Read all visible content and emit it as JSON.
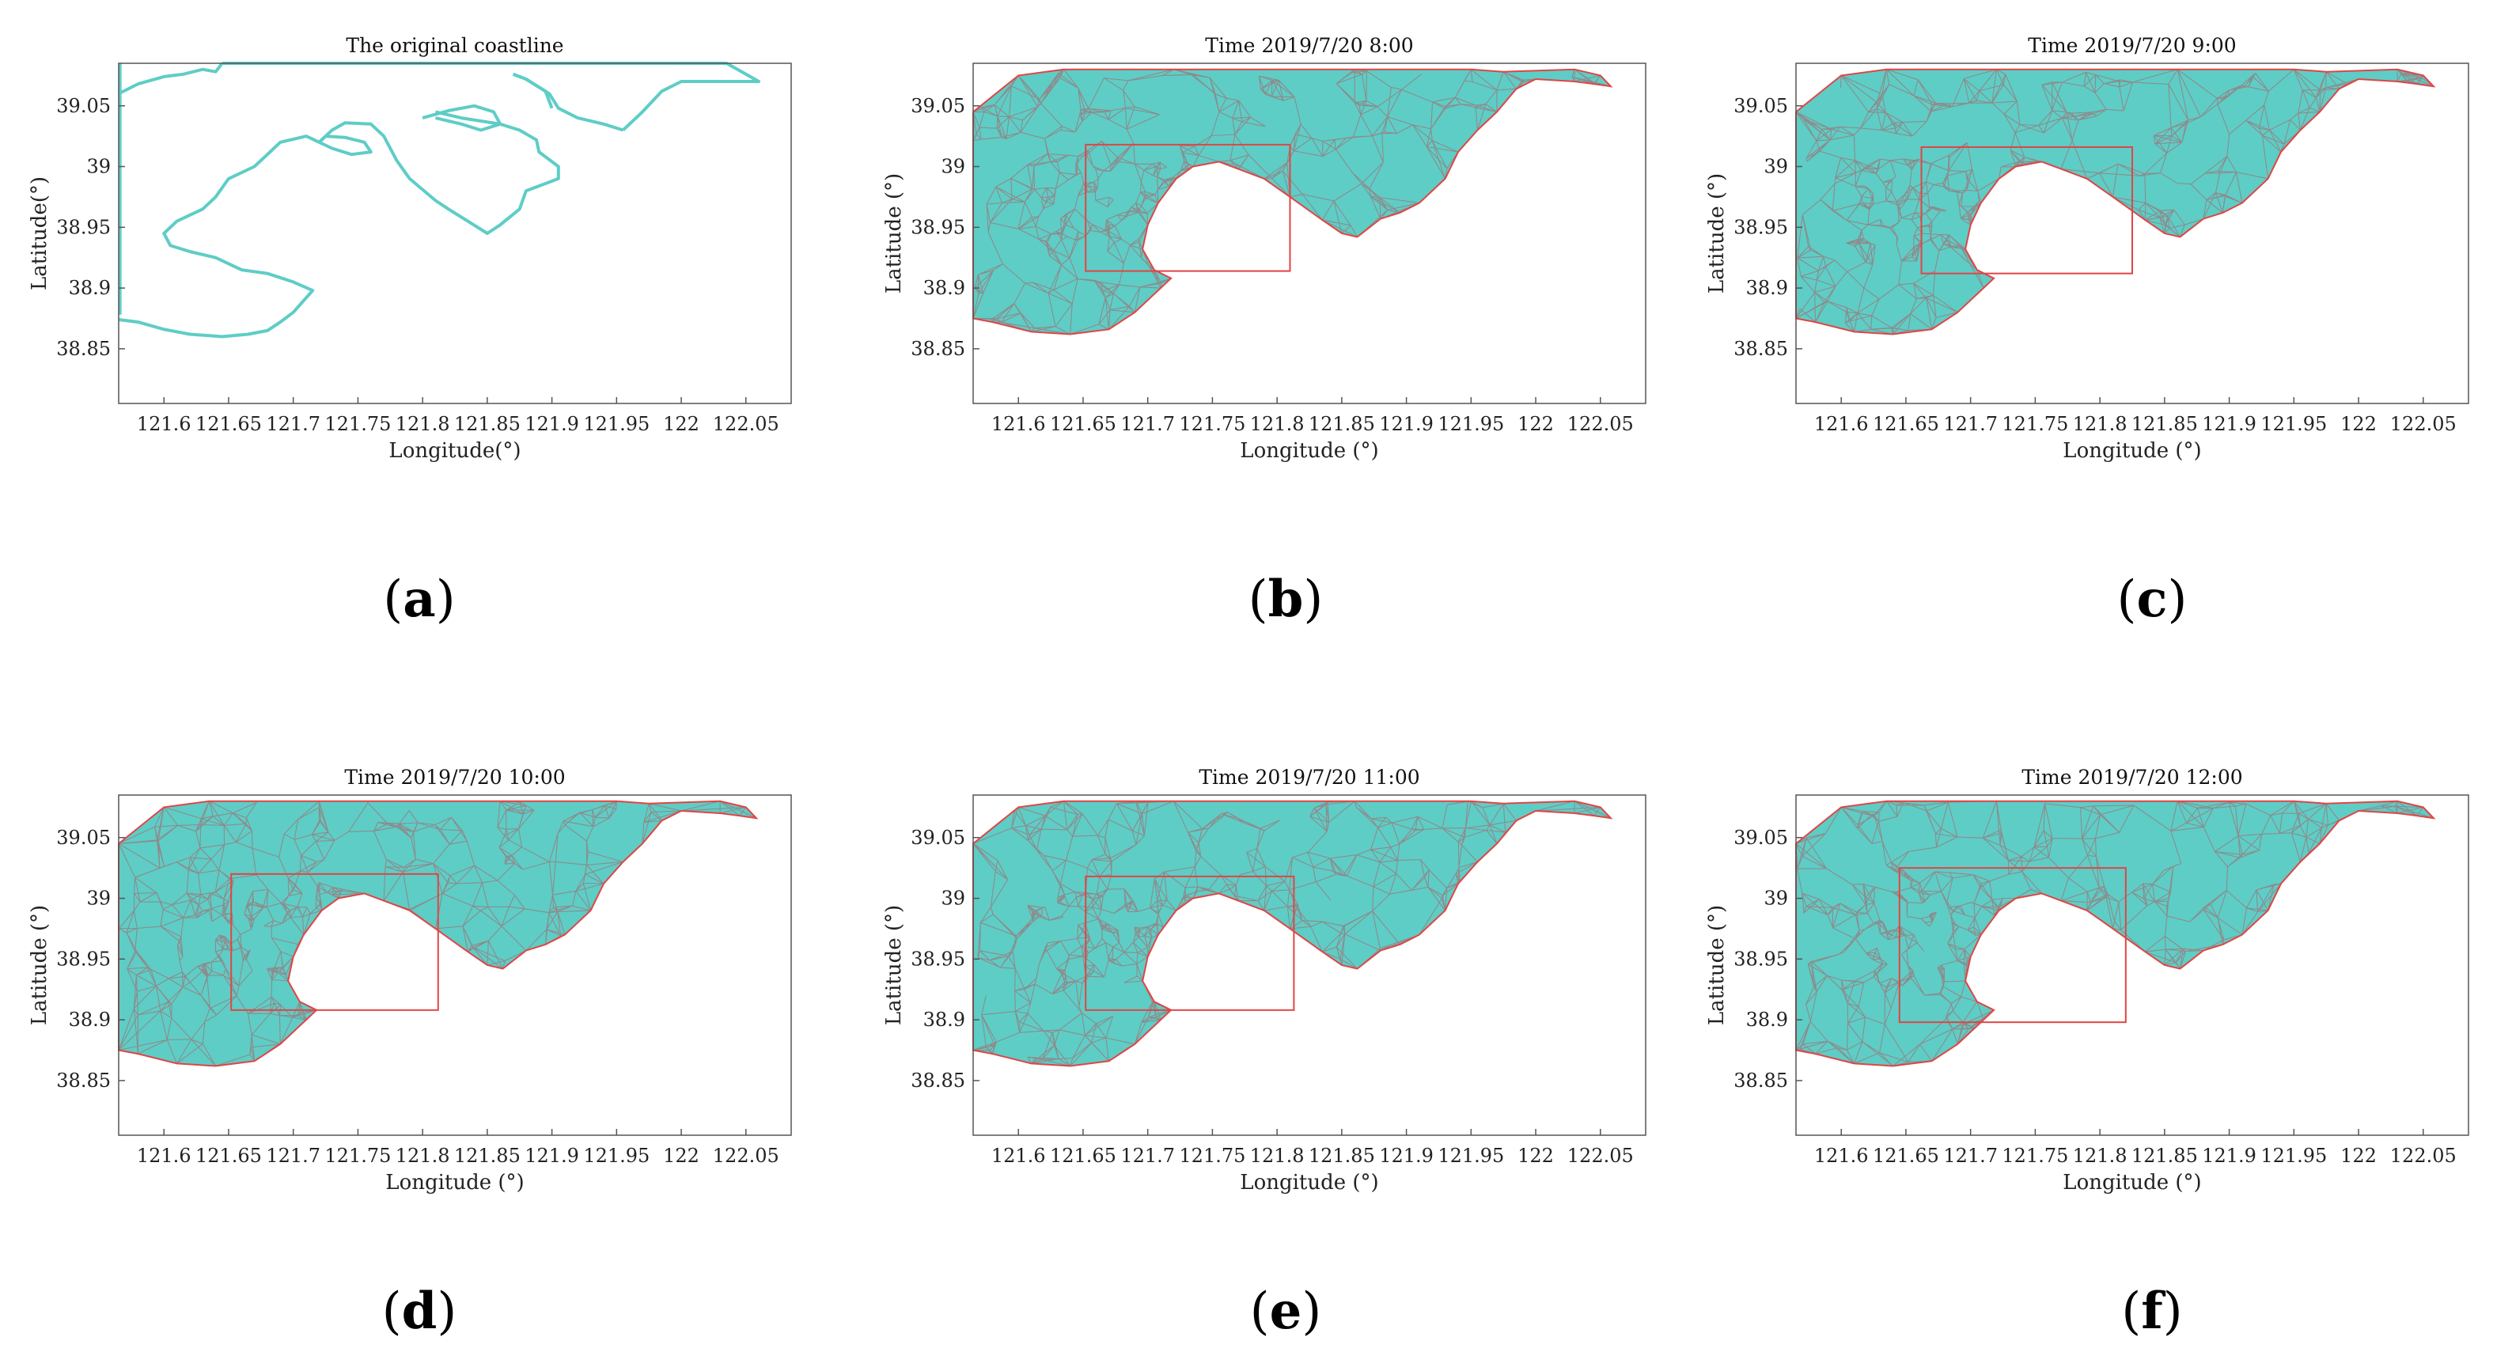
{
  "colors": {
    "water": "#5ecdc6",
    "mesh": "#8c8c8c",
    "boundary": "#e04545",
    "box": "#e04545",
    "coast_line": "#5ecdc6",
    "axis": "#555555"
  },
  "panels": [
    {
      "id": "a",
      "caption_letter": "a",
      "title": "The original coastline",
      "xlabel": "Longitude(°)",
      "ylabel": "Latitude(°)",
      "xticks": [
        "121.6",
        "121.65",
        "121.7",
        "121.75",
        "121.8",
        "121.85",
        "121.9",
        "121.95",
        "122",
        "122.05"
      ],
      "yticks": [
        "39.05",
        "39",
        "38.95",
        "38.9",
        "38.85"
      ],
      "mode": "coastline"
    },
    {
      "id": "b",
      "caption_letter": "b",
      "title": "Time 2019/7/20 8:00",
      "xlabel": "Longitude (°)",
      "ylabel": "Latitude (°)",
      "xticks": [
        "121.6",
        "121.65",
        "121.7",
        "121.75",
        "121.8",
        "121.85",
        "121.9",
        "121.95",
        "122",
        "122.05"
      ],
      "yticks": [
        "39.05",
        "39",
        "38.95",
        "38.9",
        "38.85"
      ],
      "mode": "mesh",
      "box": {
        "lon_min": 121.652,
        "lon_max": 121.81,
        "lat_min": 38.914,
        "lat_max": 39.018
      }
    },
    {
      "id": "c",
      "caption_letter": "c",
      "title": "Time 2019/7/20 9:00",
      "xlabel": "Longitude (°)",
      "ylabel": "Latitude (°)",
      "xticks": [
        "121.6",
        "121.65",
        "121.7",
        "121.75",
        "121.8",
        "121.85",
        "121.9",
        "121.95",
        "122",
        "122.05"
      ],
      "yticks": [
        "39.05",
        "39",
        "38.95",
        "38.9",
        "38.85"
      ],
      "mode": "mesh",
      "box": {
        "lon_min": 121.662,
        "lon_max": 121.825,
        "lat_min": 38.912,
        "lat_max": 39.016
      }
    },
    {
      "id": "d",
      "caption_letter": "d",
      "title": "Time 2019/7/20 10:00",
      "xlabel": "Longitude (°)",
      "ylabel": "Latitude (°)",
      "xticks": [
        "121.6",
        "121.65",
        "121.7",
        "121.75",
        "121.8",
        "121.85",
        "121.9",
        "121.95",
        "122",
        "122.05"
      ],
      "yticks": [
        "39.05",
        "39",
        "38.95",
        "38.9",
        "38.85"
      ],
      "mode": "mesh",
      "box": {
        "lon_min": 121.652,
        "lon_max": 121.812,
        "lat_min": 38.908,
        "lat_max": 39.02
      }
    },
    {
      "id": "e",
      "caption_letter": "e",
      "title": "Time 2019/7/20 11:00",
      "xlabel": "Longitude (°)",
      "ylabel": "Latitude (°)",
      "xticks": [
        "121.6",
        "121.65",
        "121.7",
        "121.75",
        "121.8",
        "121.85",
        "121.9",
        "121.95",
        "122",
        "122.05"
      ],
      "yticks": [
        "39.05",
        "39",
        "38.95",
        "38.9",
        "38.85"
      ],
      "mode": "mesh",
      "box": {
        "lon_min": 121.652,
        "lon_max": 121.813,
        "lat_min": 38.908,
        "lat_max": 39.018
      }
    },
    {
      "id": "f",
      "caption_letter": "f",
      "title": "Time 2019/7/20 12:00",
      "xlabel": "Longitude (°)",
      "ylabel": "Latitude (°)",
      "xticks": [
        "121.6",
        "121.65",
        "121.7",
        "121.75",
        "121.8",
        "121.85",
        "121.9",
        "121.95",
        "122",
        "122.05"
      ],
      "yticks": [
        "39.05",
        "39",
        "38.95",
        "38.9",
        "38.85"
      ],
      "mode": "mesh",
      "box": {
        "lon_min": 121.645,
        "lon_max": 121.82,
        "lat_min": 38.898,
        "lat_max": 39.025
      }
    }
  ]
}
